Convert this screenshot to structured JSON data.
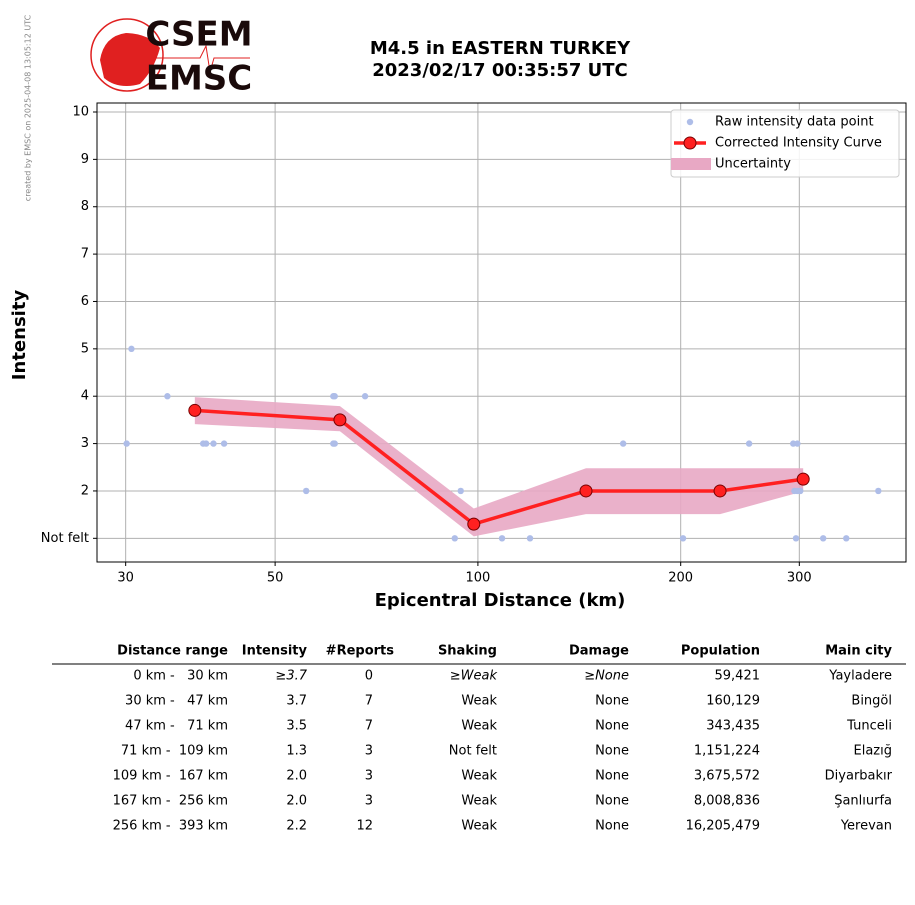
{
  "watermark": "created by EMSC on 2025-04-08 13:05:12 UTC",
  "logo": {
    "top": "CSEM",
    "bottom": "EMSC"
  },
  "chart_data": {
    "type": "line",
    "title": "M4.5 in EASTERN TURKEY",
    "subtitle": "2023/02/17 00:35:57 UTC",
    "xlabel": "Epicentral Distance (km)",
    "ylabel": "Intensity",
    "xscale": "log",
    "xlim": [
      27.2,
      432
    ],
    "xticks": [
      30,
      50,
      100,
      200,
      300
    ],
    "ylim": [
      0.5,
      10.19
    ],
    "yticks": [
      {
        "value": 1,
        "label": "Not felt"
      },
      2,
      3,
      4,
      5,
      6,
      7,
      8,
      9,
      10
    ],
    "grid": true,
    "legend": "upper right",
    "series": [
      {
        "name": "Raw intensity data point",
        "type": "scatter",
        "color": "#aebde8",
        "x": [
          30.1,
          30.6,
          34.6,
          39.1,
          39.5,
          40.5,
          42.0,
          55.6,
          61.0,
          61.3,
          61.0,
          61.3,
          68.0,
          92.4,
          94.3,
          108.6,
          119.5,
          164.3,
          201.6,
          252.7,
          293.8,
          298,
          295,
          298,
          301,
          296.6,
          325.5,
          352.2,
          393
        ],
        "values": [
          3,
          5,
          4,
          3,
          3,
          3,
          3,
          2,
          4,
          4,
          3,
          3,
          4,
          1,
          2,
          1,
          1,
          3,
          1,
          3,
          3,
          3,
          2,
          2,
          2,
          1,
          1,
          1,
          2
        ]
      },
      {
        "name": "Corrected Intensity Curve",
        "type": "line",
        "color": "#ff2020",
        "x": [
          38.0,
          62.4,
          98.6,
          144.7,
          228.8,
          304
        ],
        "values": [
          3.7,
          3.5,
          1.3,
          2.0,
          2.0,
          2.25
        ]
      },
      {
        "name": "Uncertainty",
        "type": "band",
        "color": "#e8a8c4",
        "x": [
          38.0,
          62.4,
          98.6,
          144.7,
          228.8,
          304
        ],
        "lower": [
          3.41,
          3.26,
          1.04,
          1.51,
          1.51,
          1.99
        ],
        "upper": [
          3.98,
          3.79,
          1.63,
          2.48,
          2.48,
          2.48
        ]
      }
    ]
  },
  "table": {
    "header": [
      "Distance range",
      "Intensity",
      "#Reports",
      "Shaking",
      "Damage",
      "Population",
      "Main city"
    ],
    "rows": [
      [
        "0 km -   30 km",
        "≥3.7",
        "0",
        "≥Weak",
        "≥None",
        "59,421",
        "Yayladere"
      ],
      [
        "30 km -   47 km",
        "3.7",
        "7",
        "Weak",
        "None",
        "160,129",
        "Bingöl"
      ],
      [
        "47 km -   71 km",
        "3.5",
        "7",
        "Weak",
        "None",
        "343,435",
        "Tunceli"
      ],
      [
        "71 km -  109 km",
        "1.3",
        "3",
        "Not felt",
        "None",
        "1,151,224",
        "Elazığ"
      ],
      [
        "109 km -  167 km",
        "2.0",
        "3",
        "Weak",
        "None",
        "3,675,572",
        "Diyarbakır"
      ],
      [
        "167 km -  256 km",
        "2.0",
        "3",
        "Weak",
        "None",
        "8,008,836",
        "Şanlıurfa"
      ],
      [
        "256 km -  393 km",
        "2.2",
        "12",
        "Weak",
        "None",
        "16,205,479",
        "Yerevan"
      ]
    ]
  }
}
